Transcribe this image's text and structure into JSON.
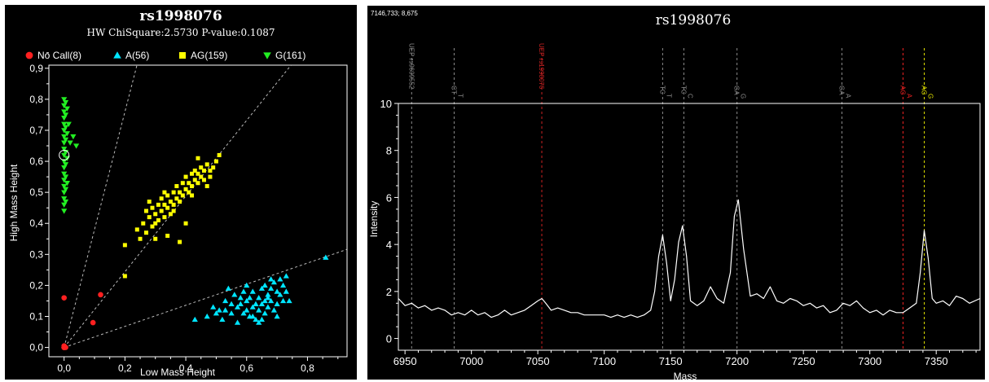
{
  "chart_data": [
    {
      "type": "scatter",
      "title": "rs1998076",
      "subtitle": "HW ChiSquare:2.5730    P-value:0.1087",
      "xlabel": "Low Mass Height",
      "ylabel": "High Mass Height",
      "xlim": [
        -0.05,
        0.93
      ],
      "ylim": [
        -0.03,
        0.91
      ],
      "xticks": [
        "0,0",
        "0,2",
        "0,4",
        "0,6",
        "0,8"
      ],
      "xtick_values": [
        0,
        0.2,
        0.4,
        0.6,
        0.8
      ],
      "yticks": [
        "0,0",
        "0,1",
        "0,2",
        "0,3",
        "0,4",
        "0,5",
        "0,6",
        "0,7",
        "0,8",
        "0,9"
      ],
      "ytick_values": [
        0,
        0.1,
        0.2,
        0.3,
        0.4,
        0.5,
        0.6,
        0.7,
        0.8,
        0.9
      ],
      "legend_position": "top",
      "guide_slopes": [
        3.8,
        1.22,
        0.34
      ],
      "series": [
        {
          "name": "No Call(8)",
          "color": "#ff2020",
          "marker": "circle",
          "points": [
            [
              0,
              0.16
            ],
            [
              0.12,
              0.17
            ],
            [
              0.095,
              0.08
            ],
            [
              0,
              0
            ],
            [
              0,
              0.005
            ],
            [
              0.005,
              0
            ],
            [
              0,
              0
            ],
            [
              0,
              0
            ]
          ]
        },
        {
          "name": "A(56)",
          "color": "#00e5ff",
          "marker": "triangle",
          "points": [
            [
              0.43,
              0.09
            ],
            [
              0.47,
              0.1
            ],
            [
              0.49,
              0.13
            ],
            [
              0.51,
              0.12
            ],
            [
              0.52,
              0.09
            ],
            [
              0.53,
              0.15
            ],
            [
              0.54,
              0.19
            ],
            [
              0.55,
              0.11
            ],
            [
              0.56,
              0.17
            ],
            [
              0.57,
              0.13
            ],
            [
              0.57,
              0.08
            ],
            [
              0.58,
              0.14
            ],
            [
              0.59,
              0.11
            ],
            [
              0.59,
              0.18
            ],
            [
              0.6,
              0.15
            ],
            [
              0.6,
              0.12
            ],
            [
              0.61,
              0.1
            ],
            [
              0.61,
              0.16
            ],
            [
              0.62,
              0.13
            ],
            [
              0.62,
              0.18
            ],
            [
              0.63,
              0.14
            ],
            [
              0.63,
              0.09
            ],
            [
              0.64,
              0.16
            ],
            [
              0.64,
              0.12
            ],
            [
              0.65,
              0.14
            ],
            [
              0.65,
              0.19
            ],
            [
              0.66,
              0.15
            ],
            [
              0.66,
              0.11
            ],
            [
              0.67,
              0.17
            ],
            [
              0.67,
              0.13
            ],
            [
              0.68,
              0.19
            ],
            [
              0.68,
              0.15
            ],
            [
              0.69,
              0.21
            ],
            [
              0.69,
              0.12
            ],
            [
              0.7,
              0.18
            ],
            [
              0.7,
              0.14
            ],
            [
              0.71,
              0.22
            ],
            [
              0.71,
              0.17
            ],
            [
              0.72,
              0.2
            ],
            [
              0.72,
              0.15
            ],
            [
              0.73,
              0.23
            ],
            [
              0.73,
              0.18
            ],
            [
              0.74,
              0.15
            ],
            [
              0.66,
              0.2
            ],
            [
              0.64,
              0.08
            ],
            [
              0.62,
              0.1
            ],
            [
              0.58,
              0.16
            ],
            [
              0.55,
              0.14
            ],
            [
              0.53,
              0.12
            ],
            [
              0.5,
              0.11
            ],
            [
              0.7,
              0.1
            ],
            [
              0.68,
              0.22
            ],
            [
              0.6,
              0.2
            ],
            [
              0.65,
              0.09
            ],
            [
              0.67,
              0.16
            ],
            [
              0.86,
              0.29
            ]
          ]
        },
        {
          "name": "AG(159)",
          "color": "#ffff00",
          "marker": "square",
          "points": [
            [
              0.2,
              0.23
            ],
            [
              0.2,
              0.33
            ],
            [
              0.24,
              0.38
            ],
            [
              0.25,
              0.35
            ],
            [
              0.26,
              0.4
            ],
            [
              0.27,
              0.37
            ],
            [
              0.27,
              0.44
            ],
            [
              0.28,
              0.42
            ],
            [
              0.29,
              0.39
            ],
            [
              0.29,
              0.45
            ],
            [
              0.3,
              0.43
            ],
            [
              0.3,
              0.4
            ],
            [
              0.31,
              0.46
            ],
            [
              0.31,
              0.41
            ],
            [
              0.32,
              0.44
            ],
            [
              0.32,
              0.48
            ],
            [
              0.33,
              0.42
            ],
            [
              0.33,
              0.46
            ],
            [
              0.34,
              0.45
            ],
            [
              0.34,
              0.49
            ],
            [
              0.35,
              0.43
            ],
            [
              0.35,
              0.47
            ],
            [
              0.36,
              0.5
            ],
            [
              0.36,
              0.46
            ],
            [
              0.37,
              0.48
            ],
            [
              0.37,
              0.52
            ],
            [
              0.38,
              0.47
            ],
            [
              0.38,
              0.5
            ],
            [
              0.39,
              0.53
            ],
            [
              0.39,
              0.49
            ],
            [
              0.4,
              0.51
            ],
            [
              0.4,
              0.55
            ],
            [
              0.41,
              0.5
            ],
            [
              0.41,
              0.53
            ],
            [
              0.42,
              0.56
            ],
            [
              0.42,
              0.52
            ],
            [
              0.43,
              0.54
            ],
            [
              0.43,
              0.57
            ],
            [
              0.44,
              0.53
            ],
            [
              0.44,
              0.56
            ],
            [
              0.45,
              0.58
            ],
            [
              0.45,
              0.55
            ],
            [
              0.46,
              0.57
            ],
            [
              0.46,
              0.54
            ],
            [
              0.47,
              0.59
            ],
            [
              0.48,
              0.57
            ],
            [
              0.48,
              0.55
            ],
            [
              0.49,
              0.58
            ],
            [
              0.5,
              0.6
            ],
            [
              0.51,
              0.62
            ],
            [
              0.44,
              0.61
            ],
            [
              0.34,
              0.36
            ],
            [
              0.38,
              0.34
            ],
            [
              0.4,
              0.4
            ],
            [
              0.3,
              0.35
            ],
            [
              0.36,
              0.44
            ],
            [
              0.42,
              0.49
            ],
            [
              0.33,
              0.5
            ],
            [
              0.28,
              0.47
            ],
            [
              0.47,
              0.52
            ]
          ]
        },
        {
          "name": "G(161)",
          "color": "#22ee22",
          "marker": "triangle-down",
          "points": [
            [
              0,
              0.44
            ],
            [
              0,
              0.46
            ],
            [
              0,
              0.48
            ],
            [
              0,
              0.5
            ],
            [
              0,
              0.52
            ],
            [
              0,
              0.54
            ],
            [
              0,
              0.56
            ],
            [
              0,
              0.58
            ],
            [
              0,
              0.6
            ],
            [
              0,
              0.62
            ],
            [
              0,
              0.64
            ],
            [
              0,
              0.66
            ],
            [
              0,
              0.68
            ],
            [
              0,
              0.7
            ],
            [
              0,
              0.72
            ],
            [
              0,
              0.74
            ],
            [
              0,
              0.76
            ],
            [
              0,
              0.78
            ],
            [
              0,
              0.8
            ],
            [
              0.005,
              0.47
            ],
            [
              0.005,
              0.51
            ],
            [
              0.005,
              0.55
            ],
            [
              0.005,
              0.59
            ],
            [
              0.005,
              0.63
            ],
            [
              0.005,
              0.67
            ],
            [
              0.005,
              0.71
            ],
            [
              0.005,
              0.75
            ],
            [
              0.005,
              0.79
            ],
            [
              0.01,
              0.53
            ],
            [
              0.01,
              0.61
            ],
            [
              0.01,
              0.69
            ],
            [
              0.01,
              0.77
            ],
            [
              0.02,
              0.66
            ],
            [
              0.04,
              0.65
            ],
            [
              0.03,
              0.68
            ],
            [
              0.015,
              0.72
            ]
          ]
        }
      ],
      "marker_annotation": {
        "x": 0,
        "y": 0.62,
        "shape": "open-circle",
        "color": "#ffffff"
      }
    },
    {
      "type": "line",
      "title": "rs1998076",
      "corner_text": "7146,733; 8,675",
      "xlabel": "Mass",
      "ylabel": "Intensity",
      "xlim": [
        6945,
        7383
      ],
      "ylim": [
        -0.5,
        10
      ],
      "xticks": [
        "6950",
        "7000",
        "7050",
        "7100",
        "7150",
        "7200",
        "7250",
        "7300",
        "7350"
      ],
      "xtick_values": [
        6950,
        7000,
        7050,
        7100,
        7150,
        7200,
        7250,
        7300,
        7350
      ],
      "yticks": [
        "0",
        "2",
        "4",
        "6",
        "8",
        "10"
      ],
      "ytick_values": [
        0,
        2,
        4,
        6,
        8,
        10
      ],
      "series": [
        {
          "name": "",
          "color": "#ffffff",
          "x": [
            6945,
            6950,
            6955,
            6960,
            6965,
            6970,
            6975,
            6980,
            6985,
            6990,
            6995,
            7000,
            7005,
            7010,
            7015,
            7020,
            7025,
            7030,
            7035,
            7040,
            7045,
            7050,
            7053,
            7056,
            7060,
            7065,
            7070,
            7075,
            7080,
            7085,
            7090,
            7095,
            7100,
            7105,
            7110,
            7115,
            7120,
            7125,
            7130,
            7135,
            7138,
            7141,
            7144,
            7147,
            7150,
            7153,
            7156,
            7159,
            7162,
            7165,
            7170,
            7175,
            7180,
            7185,
            7190,
            7195,
            7198,
            7201,
            7205,
            7210,
            7215,
            7220,
            7225,
            7230,
            7235,
            7240,
            7245,
            7250,
            7255,
            7260,
            7265,
            7270,
            7275,
            7280,
            7285,
            7290,
            7295,
            7300,
            7305,
            7310,
            7315,
            7320,
            7325,
            7330,
            7335,
            7338,
            7341,
            7344,
            7347,
            7350,
            7355,
            7360,
            7365,
            7370,
            7375,
            7383
          ],
          "y": [
            1.7,
            1.4,
            1.5,
            1.3,
            1.4,
            1.2,
            1.3,
            1.2,
            1.0,
            1.1,
            1.0,
            1.2,
            1.0,
            1.1,
            0.9,
            1.0,
            1.2,
            1.0,
            1.1,
            1.2,
            1.4,
            1.6,
            1.7,
            1.5,
            1.2,
            1.3,
            1.2,
            1.1,
            1.1,
            1.0,
            1.0,
            1.0,
            1.0,
            0.9,
            1.0,
            0.9,
            1.0,
            0.9,
            1.0,
            1.2,
            2.0,
            3.5,
            4.4,
            3.2,
            1.6,
            2.5,
            4.1,
            4.8,
            3.5,
            1.6,
            1.4,
            1.6,
            2.2,
            1.7,
            1.5,
            2.8,
            5.2,
            5.9,
            3.8,
            1.8,
            1.9,
            1.7,
            2.2,
            1.6,
            1.5,
            1.7,
            1.6,
            1.4,
            1.5,
            1.3,
            1.4,
            1.1,
            1.2,
            1.5,
            1.4,
            1.6,
            1.3,
            1.1,
            1.2,
            1.0,
            1.2,
            1.1,
            1.1,
            1.3,
            1.5,
            2.8,
            4.6,
            3.4,
            1.7,
            1.5,
            1.6,
            1.4,
            1.8,
            1.7,
            1.5,
            1.7
          ]
        }
      ],
      "markers": [
        {
          "x": 6955,
          "label": "UEP rs9609552",
          "color": "#8a8a8a"
        },
        {
          "x": 6987,
          "label": "CT",
          "sublabel": "T",
          "color": "#8a8a8a"
        },
        {
          "x": 7053,
          "label": "UEP rs1998076",
          "color": "#cc2222"
        },
        {
          "x": 7144,
          "label": "TC",
          "sublabel": "T",
          "color": "#8a8a8a"
        },
        {
          "x": 7160,
          "label": "TC",
          "sublabel": "C",
          "color": "#8a8a8a"
        },
        {
          "x": 7200,
          "label": "GA",
          "sublabel": "G",
          "color": "#8a8a8a"
        },
        {
          "x": 7279,
          "label": "GA",
          "sublabel": "A",
          "color": "#8a8a8a"
        },
        {
          "x": 7325,
          "label": "AG",
          "sublabel": "A",
          "color": "#ee2222"
        },
        {
          "x": 7341,
          "label": "AG",
          "sublabel": "G",
          "color": "#e0e000"
        }
      ]
    }
  ]
}
